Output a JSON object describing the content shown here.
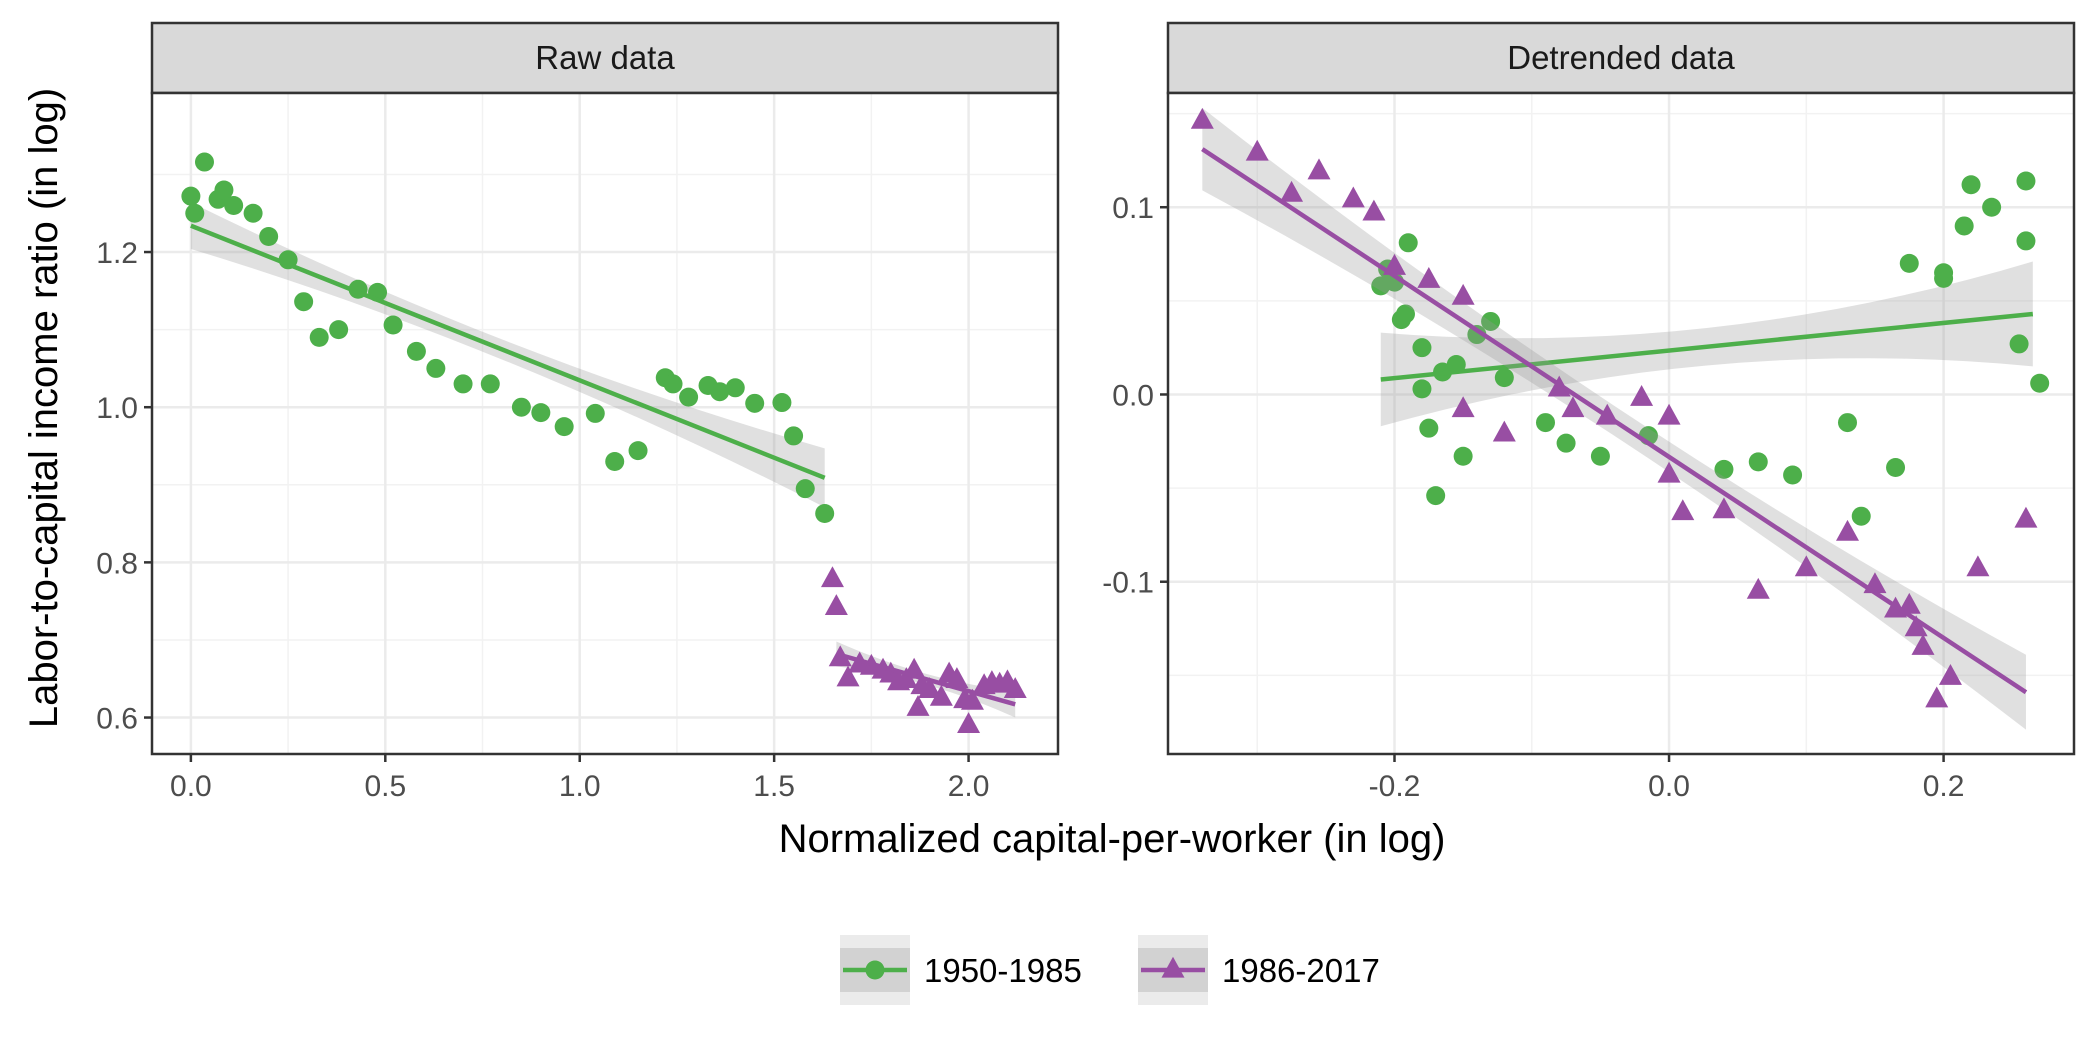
{
  "chart_data": {
    "type": "scatter",
    "xlabel": "Normalized capital-per-worker (in log)",
    "ylabel": "Labor-to-capital income ratio (in log)",
    "legend_position": "bottom",
    "grid": true,
    "colors": {
      "1950-1985": "#4daf4a",
      "1986-2017": "#984ea3",
      "ribbon": "#999999"
    },
    "legend": [
      {
        "name": "1950-1985",
        "color": "#4daf4a",
        "shape": "circle"
      },
      {
        "name": "1986-2017",
        "color": "#984ea3",
        "shape": "triangle"
      }
    ],
    "panels": [
      {
        "strip": "Raw data",
        "xlim": [
          -0.1,
          2.23
        ],
        "ylim": [
          0.553,
          1.405
        ],
        "xticks": [
          0.0,
          0.5,
          1.0,
          1.5,
          2.0
        ],
        "xtick_labels": [
          "0.0",
          "0.5",
          "1.0",
          "1.5",
          "2.0"
        ],
        "yticks": [
          0.6,
          0.8,
          1.0,
          1.2
        ],
        "ytick_labels": [
          "0.6",
          "0.8",
          "1.0",
          "1.2"
        ],
        "series": [
          {
            "name": "1950-1985",
            "marker": "circle",
            "points": [
              [
                0.0,
                1.272
              ],
              [
                0.01,
                1.25
              ],
              [
                0.035,
                1.316
              ],
              [
                0.07,
                1.268
              ],
              [
                0.085,
                1.28
              ],
              [
                0.11,
                1.26
              ],
              [
                0.16,
                1.25
              ],
              [
                0.2,
                1.22
              ],
              [
                0.25,
                1.19
              ],
              [
                0.29,
                1.136
              ],
              [
                0.33,
                1.09
              ],
              [
                0.38,
                1.1
              ],
              [
                0.43,
                1.152
              ],
              [
                0.48,
                1.148
              ],
              [
                0.52,
                1.106
              ],
              [
                0.58,
                1.072
              ],
              [
                0.63,
                1.05
              ],
              [
                0.7,
                1.03
              ],
              [
                0.77,
                1.03
              ],
              [
                0.85,
                1.0
              ],
              [
                0.9,
                0.993
              ],
              [
                0.96,
                0.975
              ],
              [
                1.04,
                0.992
              ],
              [
                1.09,
                0.93
              ],
              [
                1.15,
                0.944
              ],
              [
                1.22,
                1.038
              ],
              [
                1.24,
                1.03
              ],
              [
                1.28,
                1.013
              ],
              [
                1.33,
                1.028
              ],
              [
                1.36,
                1.02
              ],
              [
                1.4,
                1.025
              ],
              [
                1.45,
                1.005
              ],
              [
                1.52,
                1.006
              ],
              [
                1.55,
                0.963
              ],
              [
                1.58,
                0.895
              ],
              [
                1.63,
                0.863
              ]
            ],
            "fit": [
              [
                0.0,
                1.234
              ],
              [
                1.63,
                0.909
              ]
            ],
            "ci_halfwidth": [
              0.03,
              0.013,
              0.038
            ]
          },
          {
            "name": "1986-2017",
            "marker": "triangle",
            "points": [
              [
                1.65,
                0.778
              ],
              [
                1.66,
                0.742
              ],
              [
                1.67,
                0.676
              ],
              [
                1.69,
                0.65
              ],
              [
                1.72,
                0.668
              ],
              [
                1.75,
                0.665
              ],
              [
                1.78,
                0.66
              ],
              [
                1.8,
                0.655
              ],
              [
                1.82,
                0.645
              ],
              [
                1.84,
                0.648
              ],
              [
                1.86,
                0.66
              ],
              [
                1.87,
                0.612
              ],
              [
                1.88,
                0.64
              ],
              [
                1.9,
                0.635
              ],
              [
                1.93,
                0.625
              ],
              [
                1.95,
                0.655
              ],
              [
                1.97,
                0.648
              ],
              [
                1.99,
                0.622
              ],
              [
                2.0,
                0.59
              ],
              [
                2.01,
                0.62
              ],
              [
                2.04,
                0.64
              ],
              [
                2.06,
                0.644
              ],
              [
                2.08,
                0.642
              ],
              [
                2.1,
                0.645
              ],
              [
                2.12,
                0.635
              ]
            ],
            "fit": [
              [
                1.66,
                0.682
              ],
              [
                2.12,
                0.617
              ]
            ],
            "ci_halfwidth": [
              0.016,
              0.007,
              0.017
            ]
          }
        ]
      },
      {
        "strip": "Detrended data",
        "xlim": [
          -0.365,
          0.295
        ],
        "ylim": [
          -0.192,
          0.161
        ],
        "xticks": [
          -0.2,
          0.0,
          0.2
        ],
        "xtick_labels": [
          "-0.2",
          "0.0",
          "0.2"
        ],
        "yticks": [
          -0.1,
          0.0,
          0.1
        ],
        "ytick_labels": [
          "-0.1",
          "0.0",
          "0.1"
        ],
        "series": [
          {
            "name": "1950-1985",
            "marker": "circle",
            "points": [
              [
                -0.21,
                0.058
              ],
              [
                -0.205,
                0.067
              ],
              [
                -0.2,
                0.06
              ],
              [
                -0.195,
                0.04
              ],
              [
                -0.192,
                0.043
              ],
              [
                -0.19,
                0.081
              ],
              [
                -0.18,
                0.003
              ],
              [
                -0.18,
                0.025
              ],
              [
                -0.175,
                -0.018
              ],
              [
                -0.17,
                -0.054
              ],
              [
                -0.165,
                0.012
              ],
              [
                -0.155,
                0.016
              ],
              [
                -0.15,
                -0.033
              ],
              [
                -0.14,
                0.032
              ],
              [
                -0.13,
                0.039
              ],
              [
                -0.12,
                0.009
              ],
              [
                -0.09,
                -0.015
              ],
              [
                -0.075,
                -0.026
              ],
              [
                -0.05,
                -0.033
              ],
              [
                -0.015,
                -0.022
              ],
              [
                0.04,
                -0.04
              ],
              [
                0.065,
                -0.036
              ],
              [
                0.09,
                -0.043
              ],
              [
                0.13,
                -0.015
              ],
              [
                0.14,
                -0.065
              ],
              [
                0.165,
                -0.039
              ],
              [
                0.175,
                0.07
              ],
              [
                0.2,
                0.065
              ],
              [
                0.2,
                0.062
              ],
              [
                0.215,
                0.09
              ],
              [
                0.22,
                0.112
              ],
              [
                0.235,
                0.1
              ],
              [
                0.255,
                0.027
              ],
              [
                0.26,
                0.082
              ],
              [
                0.26,
                0.114
              ],
              [
                0.27,
                0.006
              ]
            ],
            "fit": [
              [
                -0.21,
                0.008
              ],
              [
                0.265,
                0.043
              ]
            ],
            "ci_halfwidth": [
              0.025,
              0.01,
              0.028
            ]
          },
          {
            "name": "1986-2017",
            "marker": "triangle",
            "points": [
              [
                -0.34,
                0.146
              ],
              [
                -0.3,
                0.129
              ],
              [
                -0.275,
                0.107
              ],
              [
                -0.255,
                0.119
              ],
              [
                -0.23,
                0.104
              ],
              [
                -0.215,
                0.097
              ],
              [
                -0.2,
                0.068
              ],
              [
                -0.175,
                0.061
              ],
              [
                -0.15,
                0.052
              ],
              [
                -0.15,
                -0.008
              ],
              [
                -0.12,
                -0.021
              ],
              [
                -0.08,
                0.003
              ],
              [
                -0.07,
                -0.008
              ],
              [
                -0.045,
                -0.012
              ],
              [
                -0.02,
                -0.002
              ],
              [
                0.0,
                -0.012
              ],
              [
                0.0,
                -0.043
              ],
              [
                0.01,
                -0.063
              ],
              [
                0.04,
                -0.062
              ],
              [
                0.065,
                -0.105
              ],
              [
                0.1,
                -0.093
              ],
              [
                0.13,
                -0.074
              ],
              [
                0.15,
                -0.102
              ],
              [
                0.165,
                -0.115
              ],
              [
                0.175,
                -0.113
              ],
              [
                0.18,
                -0.125
              ],
              [
                0.185,
                -0.135
              ],
              [
                0.195,
                -0.163
              ],
              [
                0.205,
                -0.151
              ],
              [
                0.225,
                -0.093
              ],
              [
                0.26,
                -0.067
              ]
            ],
            "fit": [
              [
                -0.34,
                0.131
              ],
              [
                0.26,
                -0.159
              ]
            ],
            "ci_halfwidth": [
              0.022,
              0.008,
              0.02
            ]
          }
        ]
      }
    ]
  }
}
